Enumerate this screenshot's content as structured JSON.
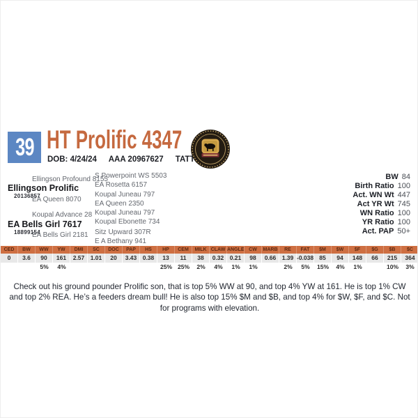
{
  "header": {
    "lot_number": "39",
    "title": "HT Prolific 4347",
    "dob": "DOB: 4/24/24",
    "registration": "AAA 20967627",
    "tattoo": "TATTOO 4347"
  },
  "pedigree": {
    "sire": {
      "name": "Ellingson Prolific",
      "reg": "20136857",
      "sire": "Ellingson Profound 8155",
      "dam": "EA Queen 8070",
      "grandparents": [
        "S Powerpoint WS 5503",
        "EA Rosetta 6157",
        "Koupal Juneau 797",
        "EA Queen 2350"
      ]
    },
    "dam": {
      "name": "EA Bells Girl 7617",
      "reg": "18899154",
      "sire": "Koupal Advance 28",
      "dam": "EA Bells Girl 2181",
      "grandparents": [
        "Koupal Juneau 797",
        "Koupal Ebonette 734",
        "Sitz Upward 307R",
        "E A Bethany 941"
      ]
    }
  },
  "performance": [
    {
      "label": "BW",
      "value": "84"
    },
    {
      "label": "Birth Ratio",
      "value": "100"
    },
    {
      "label": "Act. WN Wt",
      "value": "447"
    },
    {
      "label": "Act YR Wt",
      "value": "745"
    },
    {
      "label": "WN Ratio",
      "value": "100"
    },
    {
      "label": "YR Ratio",
      "value": "100"
    },
    {
      "label": "Act. PAP",
      "value": "50+"
    }
  ],
  "epd_table": {
    "columns": [
      "CED",
      "BW",
      "WW",
      "YW",
      "DMI",
      "SC",
      "DOC",
      "PAP",
      "HS",
      "HP",
      "CEM",
      "MILK",
      "CLAW",
      "ANGLE",
      "CW",
      "MARB",
      "RE",
      "FAT",
      "$M",
      "$W",
      "$F",
      "$G",
      "$B",
      "$C"
    ],
    "values": [
      "0",
      "3.6",
      "90",
      "161",
      "2.57",
      "1.01",
      "20",
      "3.43",
      "0.38",
      "13",
      "11",
      "38",
      "0.32",
      "0.21",
      "98",
      "0.66",
      "1.39",
      "-0.038",
      "85",
      "94",
      "148",
      "66",
      "215",
      "364"
    ],
    "percentiles": [
      "",
      "",
      "5%",
      "4%",
      "",
      "",
      "",
      "",
      "",
      "25%",
      "25%",
      "2%",
      "4%",
      "1%",
      "1%",
      "",
      "2%",
      "5%",
      "15%",
      "4%",
      "1%",
      "",
      "10%",
      "3%"
    ]
  },
  "description": "Check out his ground pounder Prolific son, that is top 5% WW at 90, and top 4% YW at 161. He is top 1% CW and top 2% REA. He’s a feeders dream bull! He is also top 15% $M and $B, and top 4% for $W, $F, and $C. Not for programs with elevation.",
  "colors": {
    "accent_orange": "#c5693f",
    "lot_blue": "#5c87c3",
    "table_header_bg": "#ce6f42",
    "table_header_text": "#5c2a12",
    "table_value_bg": "#e8e8e8",
    "seal_ring": "#241c12",
    "seal_gold": "#d8a94f",
    "seal_banner": "#7c2d35"
  }
}
